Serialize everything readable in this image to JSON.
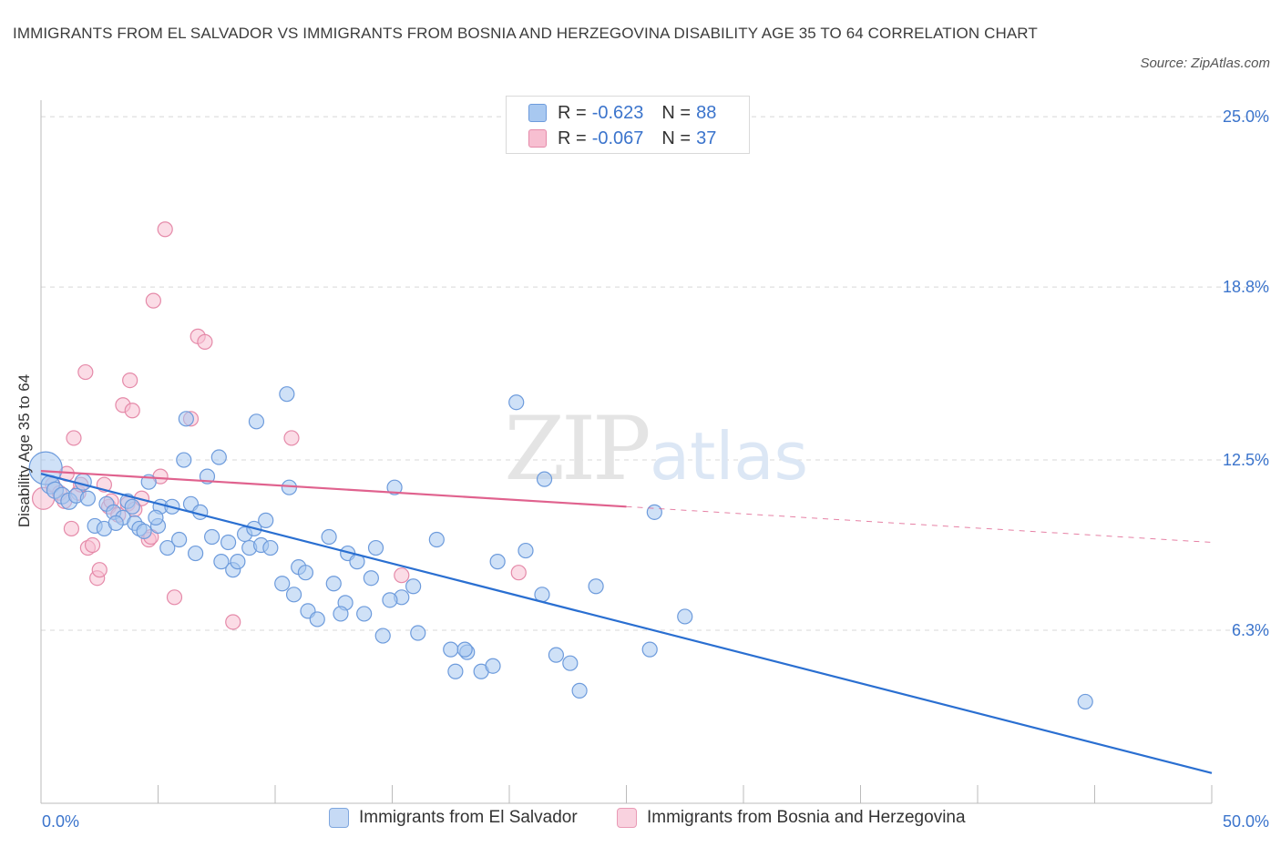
{
  "title": "IMMIGRANTS FROM EL SALVADOR VS IMMIGRANTS FROM BOSNIA AND HERZEGOVINA DISABILITY AGE 35 TO 64 CORRELATION CHART",
  "source": "Source: ZipAtlas.com",
  "watermark": {
    "zip": "ZIP",
    "atlas": "atlas"
  },
  "legend_top": {
    "rows": [
      {
        "r_label": "R =",
        "r_value": "-0.623",
        "n_label": "N =",
        "n_value": "88"
      },
      {
        "r_label": "R =",
        "r_value": "-0.067",
        "n_label": "N =",
        "n_value": "37"
      }
    ]
  },
  "chart_data": {
    "type": "scatter",
    "title": "IMMIGRANTS FROM EL SALVADOR VS IMMIGRANTS FROM BOSNIA AND HERZEGOVINA DISABILITY AGE 35 TO 64 CORRELATION CHART",
    "xlabel": "",
    "ylabel": "Disability Age 35 to 64",
    "xlim": [
      0,
      50
    ],
    "ylim": [
      0,
      25.6
    ],
    "x_tick_labels": [
      "0.0%",
      "50.0%"
    ],
    "y_ticks": [
      6.3,
      12.5,
      18.8,
      25.0
    ],
    "y_tick_labels": [
      "6.3%",
      "12.5%",
      "18.8%",
      "25.0%"
    ],
    "colors": {
      "blue_fill": "#a8c8f0",
      "blue_stroke": "#6d9bdc",
      "blue_line": "#2a6fd1",
      "pink_fill": "#f7bfd1",
      "pink_stroke": "#e58aa9",
      "pink_line": "#e0628e",
      "axis_text": "#3b74cc",
      "grid": "#d8d8d8"
    },
    "series": [
      {
        "name": "Immigrants from El Salvador",
        "color": "blue",
        "trend": {
          "x": [
            0.0,
            50.0
          ],
          "y": [
            12.0,
            1.1
          ]
        },
        "points": [
          [
            0.2,
            12.2,
            18
          ],
          [
            0.4,
            11.6,
            10
          ],
          [
            0.6,
            11.4,
            9
          ],
          [
            0.9,
            11.2,
            9
          ],
          [
            1.2,
            11.0,
            9
          ],
          [
            1.5,
            11.2,
            8
          ],
          [
            1.8,
            11.7,
            9
          ],
          [
            2.3,
            10.1,
            8
          ],
          [
            2.8,
            10.9,
            8
          ],
          [
            3.1,
            10.6,
            8
          ],
          [
            3.5,
            10.4,
            8
          ],
          [
            2.7,
            10.0,
            8
          ],
          [
            3.2,
            10.2,
            8
          ],
          [
            3.7,
            11.0,
            8
          ],
          [
            4.0,
            10.2,
            8
          ],
          [
            4.2,
            10.0,
            8
          ],
          [
            4.4,
            9.9,
            8
          ],
          [
            4.6,
            11.7,
            8
          ],
          [
            5.0,
            10.1,
            8
          ],
          [
            5.1,
            10.8,
            8
          ],
          [
            5.4,
            9.3,
            8
          ],
          [
            5.6,
            10.8,
            8
          ],
          [
            5.9,
            9.6,
            8
          ],
          [
            6.1,
            12.5,
            8
          ],
          [
            6.2,
            14.0,
            8
          ],
          [
            6.4,
            10.9,
            8
          ],
          [
            6.6,
            9.1,
            8
          ],
          [
            6.8,
            10.6,
            8
          ],
          [
            7.1,
            11.9,
            8
          ],
          [
            7.3,
            9.7,
            8
          ],
          [
            7.6,
            12.6,
            8
          ],
          [
            7.7,
            8.8,
            8
          ],
          [
            8.0,
            9.5,
            8
          ],
          [
            8.2,
            8.5,
            8
          ],
          [
            8.4,
            8.8,
            8
          ],
          [
            8.7,
            9.8,
            8
          ],
          [
            8.9,
            9.3,
            8
          ],
          [
            9.2,
            13.9,
            8
          ],
          [
            9.4,
            9.4,
            8
          ],
          [
            9.6,
            10.3,
            8
          ],
          [
            9.8,
            9.3,
            8
          ],
          [
            10.3,
            8.0,
            8
          ],
          [
            10.5,
            14.9,
            8
          ],
          [
            10.6,
            11.5,
            8
          ],
          [
            10.8,
            7.6,
            8
          ],
          [
            11.0,
            8.6,
            8
          ],
          [
            11.4,
            7.0,
            8
          ],
          [
            11.8,
            6.7,
            8
          ],
          [
            12.3,
            9.7,
            8
          ],
          [
            12.5,
            8.0,
            8
          ],
          [
            13.0,
            7.3,
            8
          ],
          [
            13.1,
            9.1,
            8
          ],
          [
            13.5,
            8.8,
            8
          ],
          [
            13.8,
            6.9,
            8
          ],
          [
            14.1,
            8.2,
            8
          ],
          [
            14.3,
            9.3,
            8
          ],
          [
            14.6,
            6.1,
            8
          ],
          [
            15.1,
            11.5,
            8
          ],
          [
            15.4,
            7.5,
            8
          ],
          [
            15.9,
            7.9,
            8
          ],
          [
            16.1,
            6.2,
            8
          ],
          [
            16.9,
            9.6,
            8
          ],
          [
            17.5,
            5.6,
            8
          ],
          [
            17.7,
            4.8,
            8
          ],
          [
            18.2,
            5.5,
            8
          ],
          [
            18.8,
            4.8,
            8
          ],
          [
            19.3,
            5.0,
            8
          ],
          [
            19.5,
            8.8,
            8
          ],
          [
            20.3,
            14.6,
            8
          ],
          [
            21.4,
            7.6,
            8
          ],
          [
            21.5,
            11.8,
            8
          ],
          [
            22.0,
            5.4,
            8
          ],
          [
            22.6,
            5.1,
            8
          ],
          [
            23.0,
            4.1,
            8
          ],
          [
            23.7,
            7.9,
            8
          ],
          [
            20.7,
            9.2,
            8
          ],
          [
            18.1,
            5.6,
            8
          ],
          [
            26.0,
            5.6,
            8
          ],
          [
            26.2,
            10.6,
            8
          ],
          [
            27.5,
            6.8,
            8
          ],
          [
            44.6,
            3.7,
            8
          ],
          [
            2.0,
            11.1,
            8
          ],
          [
            4.9,
            10.4,
            8
          ],
          [
            12.8,
            6.9,
            8
          ],
          [
            9.1,
            10.0,
            8
          ],
          [
            14.9,
            7.4,
            8
          ],
          [
            11.3,
            8.4,
            8
          ],
          [
            3.9,
            10.8,
            8
          ]
        ]
      },
      {
        "name": "Immigrants from Bosnia and Herzegovina",
        "color": "pink",
        "trend": {
          "x": [
            0.0,
            25.0
          ],
          "y": [
            12.1,
            10.8
          ]
        },
        "trend_dashed": {
          "x": [
            25.0,
            50.0
          ],
          "y": [
            10.8,
            9.5
          ]
        },
        "points": [
          [
            0.1,
            11.1,
            12
          ],
          [
            0.5,
            11.6,
            8
          ],
          [
            0.8,
            11.3,
            8
          ],
          [
            1.0,
            11.0,
            8
          ],
          [
            1.1,
            12.0,
            8
          ],
          [
            1.3,
            10.0,
            8
          ],
          [
            1.4,
            13.3,
            8
          ],
          [
            1.6,
            11.3,
            8
          ],
          [
            1.7,
            11.6,
            8
          ],
          [
            2.0,
            9.3,
            8
          ],
          [
            1.9,
            15.7,
            8
          ],
          [
            2.2,
            9.4,
            8
          ],
          [
            2.4,
            8.2,
            8
          ],
          [
            2.5,
            8.5,
            8
          ],
          [
            2.7,
            11.6,
            8
          ],
          [
            2.9,
            10.8,
            8
          ],
          [
            3.0,
            11.0,
            8
          ],
          [
            3.3,
            10.5,
            8
          ],
          [
            3.5,
            14.5,
            8
          ],
          [
            3.7,
            10.9,
            8
          ],
          [
            3.8,
            15.4,
            8
          ],
          [
            3.9,
            14.3,
            8
          ],
          [
            4.0,
            10.7,
            8
          ],
          [
            4.3,
            11.1,
            8
          ],
          [
            4.6,
            9.6,
            8
          ],
          [
            4.7,
            9.7,
            8
          ],
          [
            4.8,
            18.3,
            8
          ],
          [
            5.1,
            11.9,
            8
          ],
          [
            5.3,
            20.9,
            8
          ],
          [
            5.7,
            7.5,
            8
          ],
          [
            6.4,
            14.0,
            8
          ],
          [
            6.7,
            17.0,
            8
          ],
          [
            7.0,
            16.8,
            8
          ],
          [
            8.2,
            6.6,
            8
          ],
          [
            10.7,
            13.3,
            8
          ],
          [
            15.4,
            8.3,
            8
          ],
          [
            20.4,
            8.4,
            8
          ]
        ]
      }
    ],
    "legend": [
      "Immigrants from El Salvador",
      "Immigrants from Bosnia and Herzegovina"
    ]
  }
}
